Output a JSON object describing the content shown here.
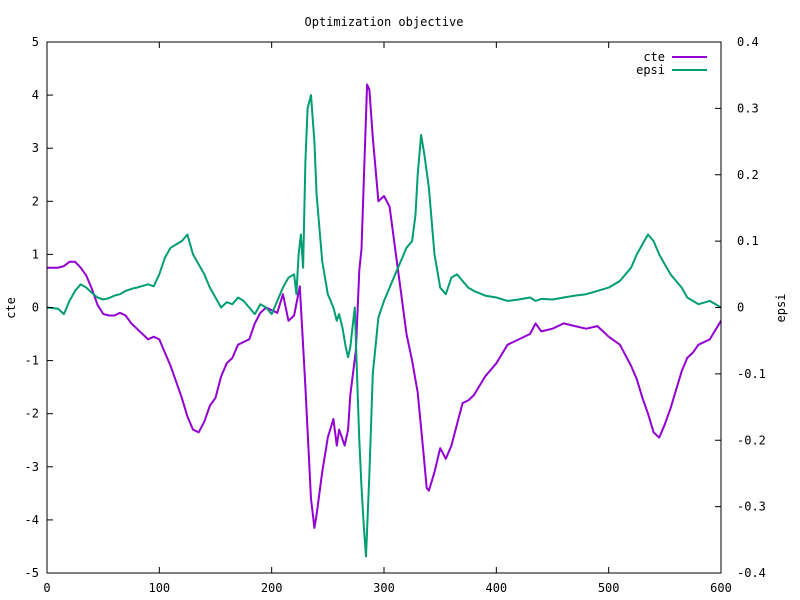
{
  "chart_data": {
    "type": "line",
    "title": "Optimization objective",
    "xlabel": "",
    "ylabel": "cte",
    "y2label": "epsi",
    "xlim": [
      0,
      600
    ],
    "ylim": [
      -5,
      5
    ],
    "y2lim": [
      -0.4,
      0.4
    ],
    "x_ticks": [
      "0",
      "100",
      "200",
      "300",
      "400",
      "500",
      "600"
    ],
    "y_ticks": [
      "-5",
      "-4",
      "-3",
      "-2",
      "-1",
      "0",
      "1",
      "2",
      "3",
      "4",
      "5"
    ],
    "y2_ticks": [
      "-0.4",
      "-0.3",
      "-0.2",
      "-0.1",
      "0",
      "0.1",
      "0.2",
      "0.3",
      "0.4"
    ],
    "grid": false,
    "legend_position": "top-right",
    "series": [
      {
        "name": "cte",
        "axis": "y",
        "color": "#9400d3",
        "x": [
          0,
          10,
          15,
          20,
          25,
          30,
          35,
          40,
          45,
          50,
          55,
          60,
          65,
          70,
          75,
          80,
          90,
          95,
          100,
          105,
          110,
          115,
          120,
          125,
          130,
          135,
          140,
          145,
          150,
          155,
          160,
          165,
          170,
          175,
          180,
          185,
          190,
          195,
          200,
          205,
          210,
          215,
          220,
          225,
          230,
          235,
          238,
          240,
          245,
          250,
          255,
          258,
          260,
          265,
          268,
          270,
          275,
          278,
          280,
          283,
          285,
          287,
          290,
          295,
          300,
          305,
          310,
          315,
          320,
          325,
          330,
          335,
          338,
          340,
          345,
          350,
          355,
          360,
          365,
          370,
          375,
          380,
          390,
          400,
          410,
          420,
          430,
          435,
          440,
          450,
          460,
          470,
          480,
          490,
          500,
          510,
          520,
          525,
          530,
          535,
          540,
          545,
          550,
          555,
          560,
          565,
          570,
          575,
          580,
          590,
          600
        ],
        "y": [
          0.75,
          0.75,
          0.78,
          0.86,
          0.86,
          0.75,
          0.6,
          0.35,
          0.05,
          -0.12,
          -0.15,
          -0.15,
          -0.1,
          -0.15,
          -0.3,
          -0.4,
          -0.6,
          -0.55,
          -0.6,
          -0.85,
          -1.1,
          -1.4,
          -1.7,
          -2.05,
          -2.3,
          -2.35,
          -2.15,
          -1.85,
          -1.7,
          -1.3,
          -1.05,
          -0.95,
          -0.7,
          -0.65,
          -0.6,
          -0.3,
          -0.1,
          0.0,
          -0.05,
          -0.1,
          0.25,
          -0.25,
          -0.15,
          0.4,
          -1.5,
          -3.6,
          -4.15,
          -3.9,
          -3.1,
          -2.45,
          -2.1,
          -2.6,
          -2.3,
          -2.6,
          -2.3,
          -1.65,
          -0.8,
          0.7,
          1.1,
          3.0,
          4.2,
          4.1,
          3.2,
          2.0,
          2.1,
          1.9,
          1.1,
          0.3,
          -0.5,
          -1.0,
          -1.6,
          -2.7,
          -3.4,
          -3.45,
          -3.1,
          -2.65,
          -2.85,
          -2.6,
          -2.2,
          -1.8,
          -1.75,
          -1.65,
          -1.3,
          -1.05,
          -0.7,
          -0.6,
          -0.5,
          -0.3,
          -0.45,
          -0.4,
          -0.3,
          -0.35,
          -0.4,
          -0.35,
          -0.55,
          -0.7,
          -1.1,
          -1.35,
          -1.7,
          -2.0,
          -2.35,
          -2.45,
          -2.2,
          -1.9,
          -1.55,
          -1.2,
          -0.95,
          -0.85,
          -0.7,
          -0.6,
          -0.25
        ]
      },
      {
        "name": "epsi",
        "axis": "y2",
        "color": "#009e73",
        "x": [
          0,
          10,
          15,
          20,
          25,
          30,
          35,
          40,
          45,
          50,
          55,
          60,
          65,
          70,
          75,
          80,
          90,
          95,
          100,
          105,
          110,
          115,
          120,
          125,
          130,
          135,
          140,
          145,
          150,
          155,
          160,
          165,
          170,
          175,
          180,
          185,
          190,
          195,
          200,
          205,
          210,
          215,
          220,
          222,
          224,
          226,
          228,
          230,
          232,
          235,
          238,
          240,
          245,
          250,
          255,
          258,
          260,
          263,
          266,
          268,
          270,
          272,
          274,
          276,
          278,
          280,
          282,
          284,
          287,
          290,
          295,
          300,
          305,
          310,
          315,
          320,
          325,
          328,
          330,
          333,
          336,
          340,
          345,
          350,
          355,
          360,
          365,
          370,
          375,
          380,
          390,
          400,
          410,
          420,
          430,
          435,
          440,
          450,
          460,
          470,
          480,
          490,
          500,
          510,
          520,
          525,
          530,
          535,
          540,
          545,
          550,
          555,
          560,
          565,
          570,
          575,
          580,
          590,
          600
        ],
        "y": [
          0.0,
          -0.002,
          -0.01,
          0.01,
          0.025,
          0.035,
          0.03,
          0.022,
          0.015,
          0.012,
          0.014,
          0.018,
          0.02,
          0.025,
          0.028,
          0.03,
          0.035,
          0.032,
          0.05,
          0.075,
          0.09,
          0.095,
          0.1,
          0.11,
          0.08,
          0.065,
          0.05,
          0.03,
          0.015,
          0.0,
          0.008,
          0.005,
          0.015,
          0.01,
          0.0,
          -0.01,
          0.005,
          0.0,
          -0.01,
          0.01,
          0.03,
          0.045,
          0.05,
          0.02,
          0.08,
          0.11,
          0.06,
          0.22,
          0.3,
          0.32,
          0.25,
          0.17,
          0.07,
          0.02,
          0.0,
          -0.02,
          -0.01,
          -0.03,
          -0.06,
          -0.075,
          -0.06,
          -0.03,
          0.0,
          -0.1,
          -0.2,
          -0.27,
          -0.33,
          -0.375,
          -0.25,
          -0.1,
          -0.015,
          0.01,
          0.03,
          0.05,
          0.07,
          0.09,
          0.1,
          0.14,
          0.2,
          0.26,
          0.23,
          0.18,
          0.08,
          0.03,
          0.02,
          0.045,
          0.05,
          0.04,
          0.03,
          0.025,
          0.018,
          0.015,
          0.01,
          0.012,
          0.015,
          0.01,
          0.013,
          0.012,
          0.015,
          0.018,
          0.02,
          0.025,
          0.03,
          0.04,
          0.06,
          0.08,
          0.095,
          0.11,
          0.1,
          0.08,
          0.065,
          0.05,
          0.04,
          0.03,
          0.015,
          0.01,
          0.005,
          0.01,
          0.0
        ]
      }
    ]
  }
}
